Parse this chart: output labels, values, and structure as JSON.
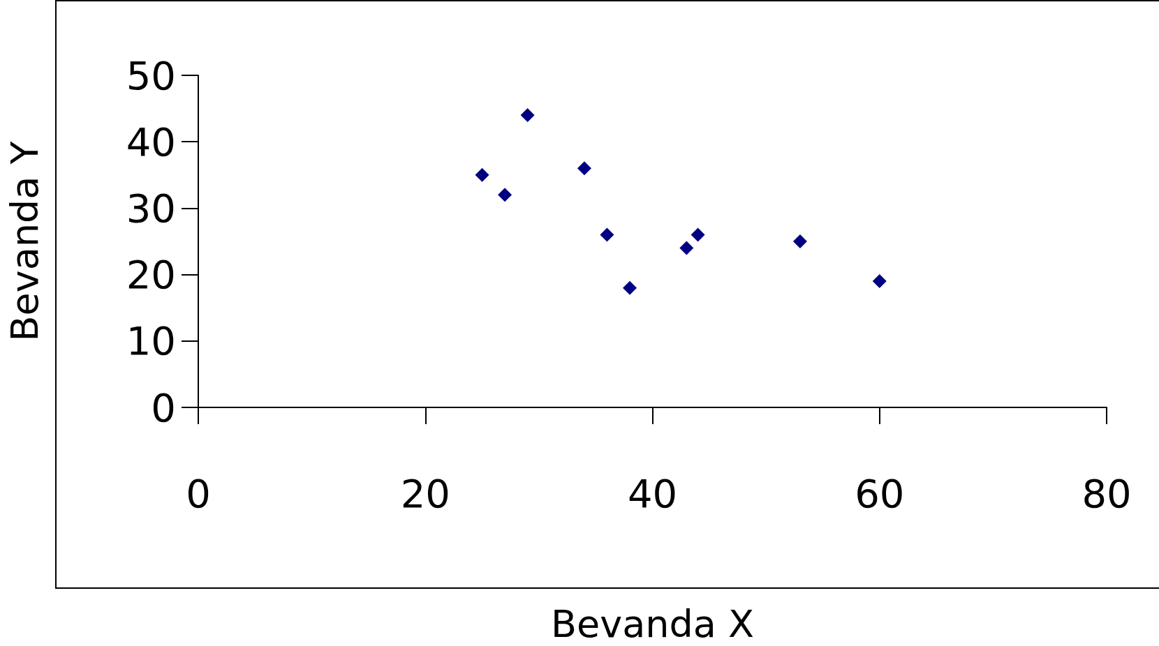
{
  "chart_data": {
    "type": "scatter",
    "xlabel": "Bevanda X",
    "ylabel": "Bevanda Y",
    "x": [
      25,
      27,
      29,
      34,
      36,
      38,
      43,
      44,
      53,
      60
    ],
    "series": [
      {
        "color": "#000080",
        "values": [
          35,
          32,
          44,
          36,
          26,
          18,
          24,
          26,
          25,
          19
        ]
      }
    ],
    "xlim": [
      0,
      80
    ],
    "xticks": [
      0,
      20,
      40,
      60,
      80
    ],
    "ylim": [
      0,
      50
    ],
    "yticks": [
      0,
      10,
      20,
      30,
      40,
      50
    ],
    "grid": false,
    "marker": "diamond"
  }
}
